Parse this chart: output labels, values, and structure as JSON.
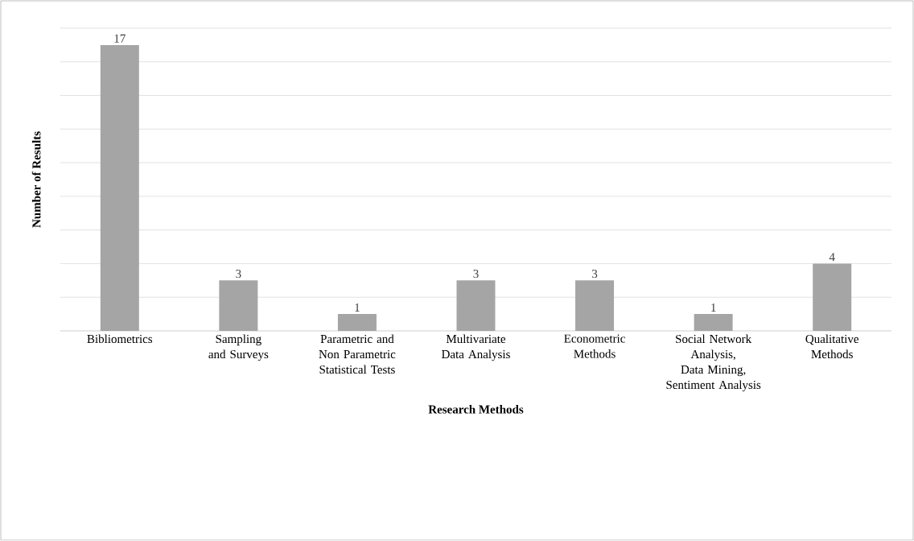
{
  "chart_data": {
    "type": "bar",
    "xlabel": "Research Methods",
    "ylabel": "Number of Results",
    "categories": [
      "Bibliometrics",
      "Sampling and Surveys",
      "Parametric and Non Parametric Statistical Tests",
      "Multivariate Data Analysis",
      "Econometric Methods",
      "Social Network Analysis, Data Mining, Sentiment Analysis",
      "Qualitative Methods"
    ],
    "values": [
      17,
      3,
      1,
      3,
      3,
      1,
      4
    ],
    "color": "#a5a5a5",
    "ylim": [
      0,
      18
    ],
    "yticks": [
      {
        "value": 0,
        "label": null
      },
      {
        "value": 2,
        "label": null
      },
      {
        "value": 4,
        "label": null
      },
      {
        "value": 6,
        "label": null
      },
      {
        "value": 8,
        "label": null
      },
      {
        "value": 10,
        "label": null
      },
      {
        "value": 12,
        "label": null
      },
      {
        "value": 14,
        "label": null
      },
      {
        "value": 16,
        "label": null
      },
      {
        "value": 18,
        "label": null
      }
    ],
    "tick_labels": "x",
    "grid": "y",
    "data_labels": true
  }
}
